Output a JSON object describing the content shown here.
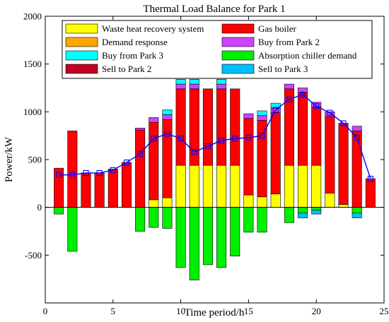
{
  "chart_data": {
    "type": "bar",
    "title": "Thermal Load Balance for Park 1",
    "xlabel": "Time period/h",
    "ylabel": "Power/kW",
    "xlim": [
      0,
      25
    ],
    "ylim": [
      -1000,
      2000
    ],
    "xticks": [
      0,
      5,
      10,
      15,
      20,
      25
    ],
    "yticks": [
      -500,
      0,
      500,
      1000,
      1500,
      2000
    ],
    "grid": false,
    "legend_position": "top",
    "x": [
      1,
      2,
      3,
      4,
      5,
      6,
      7,
      8,
      9,
      10,
      11,
      12,
      13,
      14,
      15,
      16,
      17,
      18,
      19,
      20,
      21,
      22,
      23,
      24
    ],
    "series": [
      {
        "name": "Waste heat recovery system",
        "color": "#ffff00",
        "values": [
          0,
          0,
          0,
          0,
          0,
          0,
          0,
          80,
          100,
          440,
          440,
          440,
          440,
          440,
          130,
          110,
          140,
          440,
          440,
          440,
          150,
          30,
          0,
          0
        ]
      },
      {
        "name": "Gas boiler",
        "color": "#ff0000",
        "values": [
          410,
          800,
          360,
          360,
          400,
          470,
          810,
          810,
          820,
          800,
          800,
          800,
          800,
          800,
          800,
          800,
          850,
          800,
          760,
          610,
          800,
          850,
          800,
          300
        ]
      },
      {
        "name": "Demand response",
        "color": "#ffa500",
        "values": [
          0,
          0,
          0,
          0,
          0,
          0,
          0,
          0,
          0,
          0,
          0,
          0,
          0,
          0,
          0,
          0,
          0,
          0,
          0,
          0,
          0,
          0,
          0,
          0
        ]
      },
      {
        "name": "Buy from Park 2",
        "color": "#cc44ff",
        "values": [
          0,
          0,
          0,
          0,
          0,
          0,
          20,
          50,
          50,
          50,
          50,
          0,
          50,
          0,
          50,
          50,
          50,
          50,
          50,
          50,
          50,
          0,
          50,
          0
        ]
      },
      {
        "name": "Buy from Park 3",
        "color": "#00ffff",
        "values": [
          0,
          0,
          0,
          0,
          0,
          0,
          0,
          0,
          50,
          50,
          50,
          0,
          50,
          0,
          0,
          50,
          50,
          0,
          0,
          0,
          0,
          0,
          0,
          0
        ]
      },
      {
        "name": "Absorption chiller demand",
        "color": "#00ee00",
        "values": [
          -70,
          -460,
          0,
          0,
          0,
          0,
          -250,
          -210,
          -220,
          -630,
          -760,
          -600,
          -630,
          -510,
          -260,
          -260,
          0,
          -160,
          -60,
          -30,
          0,
          0,
          -60,
          0
        ]
      },
      {
        "name": "Sell to Park 2",
        "color": "#c00020",
        "values": [
          0,
          0,
          0,
          0,
          0,
          0,
          0,
          0,
          0,
          0,
          0,
          0,
          0,
          0,
          0,
          0,
          0,
          0,
          0,
          0,
          0,
          0,
          0,
          0
        ]
      },
      {
        "name": "Sell to Park 3",
        "color": "#00bfff",
        "values": [
          0,
          0,
          0,
          0,
          0,
          0,
          0,
          0,
          0,
          0,
          0,
          0,
          0,
          0,
          0,
          0,
          0,
          0,
          -50,
          -40,
          0,
          0,
          -50,
          0
        ]
      }
    ],
    "line_series": {
      "name": "",
      "color": "#0000ff",
      "marker": "square",
      "values": [
        340,
        340,
        360,
        360,
        390,
        470,
        560,
        720,
        770,
        720,
        580,
        640,
        700,
        720,
        730,
        750,
        1020,
        1130,
        1180,
        1060,
        990,
        880,
        730,
        300
      ]
    }
  }
}
